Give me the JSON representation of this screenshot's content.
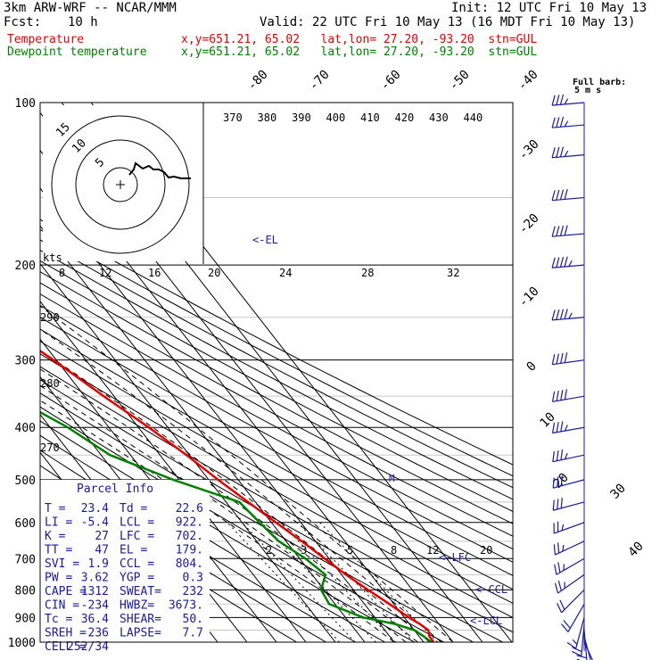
{
  "header": {
    "model": "3km ARW-WRF -- NCAR/MMM",
    "init": "Init: 12 UTC Fri 10 May 13",
    "fcst_label": "Fcst:",
    "fcst_value": "10 h",
    "valid": "Valid: 22 UTC Fri 10 May 13 (16 MDT Fri 10 May 13)",
    "temp_label": "Temperature",
    "temp_info": "x,y=651.21, 65.02   lat,lon= 27.20, -93.20  stn=GUL",
    "dew_label": "Dewpoint temperature",
    "dew_info": "x,y=651.21, 65.02   lat,lon= 27.20, -93.20  stn=GUL"
  },
  "colors": {
    "temperature": "#e60000",
    "dewpoint": "#008000",
    "info": "#1a1aa0",
    "grid": "#000000",
    "gray": "#c8c8c8"
  },
  "barb_legend": {
    "line1": "Full barb:",
    "line2": "5 m s"
  },
  "hodograph": {
    "units": "kts",
    "rings": [
      "5",
      "10",
      "15"
    ],
    "speed_labels": [
      "8",
      "12",
      "16",
      "20",
      "24",
      "28",
      "32"
    ]
  },
  "parcel_info": {
    "title": "Parcel Info",
    "rows": [
      [
        "T  =",
        "23.4",
        "Td =",
        "22.6"
      ],
      [
        "LI =",
        "-5.4",
        "LCL =",
        "922."
      ],
      [
        "K  =",
        "27",
        "LFC =",
        "702."
      ],
      [
        "TT =",
        "47",
        "EL =",
        "179."
      ],
      [
        "SVI =",
        "1.9",
        "CCL =",
        "804."
      ],
      [
        "PW =",
        "3.62",
        "YGP =",
        "0.3"
      ],
      [
        "CAPE =",
        "1312",
        "SWEAT=",
        "232"
      ],
      [
        "CIN =",
        "-234",
        "HWBZ=",
        "3673."
      ],
      [
        "Tc =",
        "36.4",
        "SHEAR=",
        "50."
      ],
      [
        "SREH =",
        "236",
        "LAPSE=",
        "7.7"
      ],
      [
        "CELL =",
        "252/34",
        "",
        ""
      ]
    ]
  },
  "chart_data": {
    "type": "line",
    "chart_kind": "skew-T log-p",
    "y_axis": {
      "scale": "log-pressure",
      "unit": "hPa",
      "ticks": [
        100,
        200,
        300,
        400,
        500,
        600,
        700,
        800,
        900,
        1000
      ]
    },
    "isotherm_labels": [
      "-80",
      "-70",
      "-60",
      "-50",
      "-40",
      "-30",
      "-20",
      "-10",
      "0",
      "10",
      "20",
      "30",
      "40"
    ],
    "theta_labels": [
      "370",
      "380",
      "390",
      "400",
      "410",
      "420",
      "430",
      "440"
    ],
    "left_theta_labels": [
      "290",
      "280",
      "270"
    ],
    "mixing_ratio_labels": [
      "2",
      "3",
      "5",
      "8",
      "12",
      "20"
    ],
    "level_markers": [
      {
        "label": "<-EL",
        "p": 179
      },
      {
        "label": "<-LFC",
        "p": 702
      },
      {
        "label": "<-CCL",
        "p": 804
      },
      {
        "label": "<-LCL",
        "p": 922
      }
    ],
    "series": [
      {
        "name": "Temperature",
        "color": "#e60000",
        "points": [
          [
            1000,
            23.4
          ],
          [
            975,
            23.5
          ],
          [
            950,
            24.8
          ],
          [
            925,
            23.5
          ],
          [
            900,
            21.5
          ],
          [
            850,
            18.5
          ],
          [
            800,
            15.0
          ],
          [
            750,
            11.5
          ],
          [
            700,
            8.5
          ],
          [
            650,
            5.3
          ],
          [
            600,
            1.5
          ],
          [
            550,
            -2.5
          ],
          [
            500,
            -6.8
          ],
          [
            450,
            -11.0
          ],
          [
            400,
            -16.5
          ],
          [
            350,
            -23.5
          ],
          [
            300,
            -31.0
          ],
          [
            250,
            -41.0
          ],
          [
            200,
            -52.0
          ],
          [
            175,
            -58.0
          ],
          [
            150,
            -65.5
          ],
          [
            125,
            -66.0
          ],
          [
            110,
            -64.5
          ],
          [
            100,
            -63.0
          ]
        ]
      },
      {
        "name": "Dewpoint temperature",
        "color": "#008000",
        "points": [
          [
            1000,
            22.6
          ],
          [
            975,
            21.5
          ],
          [
            950,
            20.0
          ],
          [
            925,
            15.0
          ],
          [
            900,
            6.0
          ],
          [
            850,
            -2.0
          ],
          [
            800,
            -1.0
          ],
          [
            750,
            4.5
          ],
          [
            700,
            2.0
          ],
          [
            650,
            -2.5
          ],
          [
            600,
            -4.0
          ],
          [
            550,
            -5.5
          ],
          [
            500,
            -22.0
          ],
          [
            450,
            -37.0
          ],
          [
            400,
            -44.0
          ],
          [
            350,
            -55.0
          ],
          [
            300,
            -57.0
          ],
          [
            250,
            -67.0
          ],
          [
            200,
            -77.0
          ],
          [
            175,
            -83.0
          ],
          [
            150,
            -89.0
          ],
          [
            125,
            -95.0
          ],
          [
            110,
            -100.0
          ],
          [
            100,
            -103.0
          ]
        ]
      }
    ],
    "winds": [
      {
        "p": 1000,
        "dir": 155,
        "spd": 14
      },
      {
        "p": 975,
        "dir": 165,
        "spd": 18
      },
      {
        "p": 950,
        "dir": 175,
        "spd": 20
      },
      {
        "p": 925,
        "dir": 185,
        "spd": 20
      },
      {
        "p": 900,
        "dir": 195,
        "spd": 18
      },
      {
        "p": 850,
        "dir": 210,
        "spd": 20
      },
      {
        "p": 800,
        "dir": 225,
        "spd": 22
      },
      {
        "p": 750,
        "dir": 235,
        "spd": 25
      },
      {
        "p": 700,
        "dir": 240,
        "spd": 25
      },
      {
        "p": 650,
        "dir": 245,
        "spd": 25
      },
      {
        "p": 600,
        "dir": 250,
        "spd": 28
      },
      {
        "p": 550,
        "dir": 255,
        "spd": 30
      },
      {
        "p": 500,
        "dir": 255,
        "spd": 33
      },
      {
        "p": 450,
        "dir": 258,
        "spd": 35
      },
      {
        "p": 400,
        "dir": 260,
        "spd": 38
      },
      {
        "p": 350,
        "dir": 260,
        "spd": 40
      },
      {
        "p": 300,
        "dir": 262,
        "spd": 42
      },
      {
        "p": 250,
        "dir": 265,
        "spd": 45
      },
      {
        "p": 200,
        "dir": 265,
        "spd": 45
      },
      {
        "p": 175,
        "dir": 265,
        "spd": 42
      },
      {
        "p": 150,
        "dir": 265,
        "spd": 40
      },
      {
        "p": 125,
        "dir": 265,
        "spd": 38
      },
      {
        "p": 110,
        "dir": 265,
        "spd": 36
      },
      {
        "p": 100,
        "dir": 265,
        "spd": 35
      }
    ]
  }
}
